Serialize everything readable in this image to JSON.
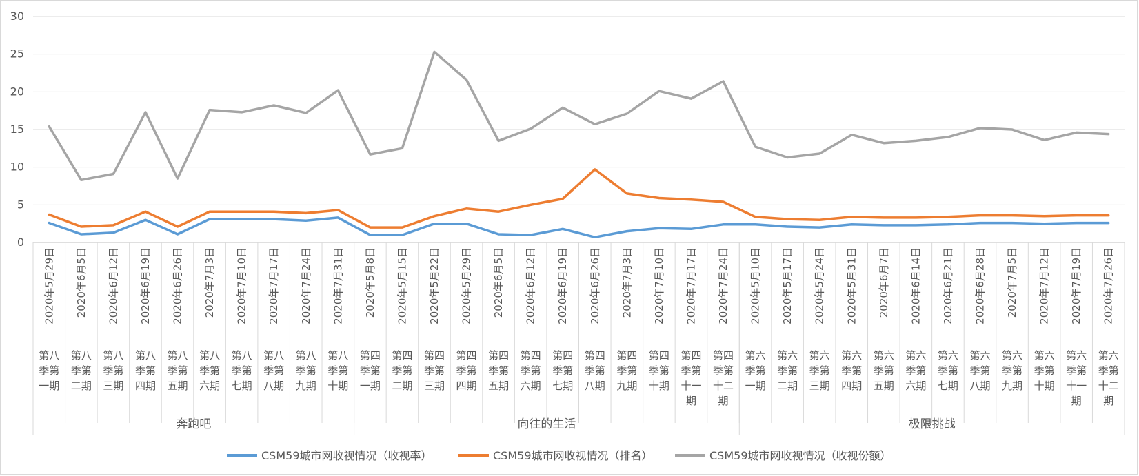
{
  "chart_data": {
    "type": "line",
    "ylim": [
      0,
      30
    ],
    "yticks": [
      0,
      5,
      10,
      15,
      20,
      25,
      30
    ],
    "grid": true,
    "legend_position": "bottom",
    "colors": [
      "#5b9bd5",
      "#ed7d31",
      "#a5a5a5"
    ],
    "groups": [
      {
        "name": "奔跑吧",
        "count": 10
      },
      {
        "name": "向往的生活",
        "count": 12
      },
      {
        "name": "极限挑战",
        "count": 12
      }
    ],
    "dates": [
      "2020年5月29日",
      "2020年6月5日",
      "2020年6月12日",
      "2020年6月19日",
      "2020年6月26日",
      "2020年7月3日",
      "2020年7月10日",
      "2020年7月17日",
      "2020年7月24日",
      "2020年7月31日",
      "2020年5月8日",
      "2020年5月15日",
      "2020年5月22日",
      "2020年5月29日",
      "2020年6月5日",
      "2020年6月12日",
      "2020年6月19日",
      "2020年6月26日",
      "2020年7月3日",
      "2020年7月10日",
      "2020年7月17日",
      "2020年7月24日",
      "2020年5月10日",
      "2020年5月17日",
      "2020年5月24日",
      "2020年5月31日",
      "2020年6月7日",
      "2020年6月14日",
      "2020年6月21日",
      "2020年6月28日",
      "2020年7月5日",
      "2020年7月12日",
      "2020年7月19日",
      "2020年7月26日"
    ],
    "episodes": [
      [
        "第八",
        "季第",
        "一期"
      ],
      [
        "第八",
        "季第",
        "二期"
      ],
      [
        "第八",
        "季第",
        "三期"
      ],
      [
        "第八",
        "季第",
        "四期"
      ],
      [
        "第八",
        "季第",
        "五期"
      ],
      [
        "第八",
        "季第",
        "六期"
      ],
      [
        "第八",
        "季第",
        "七期"
      ],
      [
        "第八",
        "季第",
        "八期"
      ],
      [
        "第八",
        "季第",
        "九期"
      ],
      [
        "第八",
        "季第",
        "十期"
      ],
      [
        "第四",
        "季第",
        "一期"
      ],
      [
        "第四",
        "季第",
        "二期"
      ],
      [
        "第四",
        "季第",
        "三期"
      ],
      [
        "第四",
        "季第",
        "四期"
      ],
      [
        "第四",
        "季第",
        "五期"
      ],
      [
        "第四",
        "季第",
        "六期"
      ],
      [
        "第四",
        "季第",
        "七期"
      ],
      [
        "第四",
        "季第",
        "八期"
      ],
      [
        "第四",
        "季第",
        "九期"
      ],
      [
        "第四",
        "季第",
        "十期"
      ],
      [
        "第四",
        "季第",
        "十一",
        "期"
      ],
      [
        "第四",
        "季第",
        "十二",
        "期"
      ],
      [
        "第六",
        "季第",
        "一期"
      ],
      [
        "第六",
        "季第",
        "二期"
      ],
      [
        "第六",
        "季第",
        "三期"
      ],
      [
        "第六",
        "季第",
        "四期"
      ],
      [
        "第六",
        "季第",
        "五期"
      ],
      [
        "第六",
        "季第",
        "六期"
      ],
      [
        "第六",
        "季第",
        "七期"
      ],
      [
        "第六",
        "季第",
        "八期"
      ],
      [
        "第六",
        "季第",
        "九期"
      ],
      [
        "第六",
        "季第",
        "十期"
      ],
      [
        "第六",
        "季第",
        "十一",
        "期"
      ],
      [
        "第六",
        "季第",
        "十二",
        "期"
      ]
    ],
    "series": [
      {
        "name": "CSM59城市网收视情况（收视率）",
        "values": [
          2.6,
          1.1,
          1.3,
          3.0,
          1.1,
          3.1,
          3.1,
          3.1,
          2.9,
          3.3,
          1.0,
          1.0,
          2.5,
          2.5,
          1.1,
          1.0,
          1.8,
          0.7,
          1.5,
          1.9,
          1.8,
          2.4,
          2.4,
          2.1,
          2.0,
          2.4,
          2.3,
          2.3,
          2.4,
          2.6,
          2.6,
          2.5,
          2.6,
          2.6
        ]
      },
      {
        "name": "CSM59城市网收视情况（排名）",
        "values": [
          3.7,
          2.1,
          2.3,
          4.1,
          2.1,
          4.1,
          4.1,
          4.1,
          3.9,
          4.3,
          2.0,
          2.0,
          3.5,
          4.5,
          4.1,
          5.0,
          5.8,
          9.7,
          6.5,
          5.9,
          5.7,
          5.4,
          3.4,
          3.1,
          3.0,
          3.4,
          3.3,
          3.3,
          3.4,
          3.6,
          3.6,
          3.5,
          3.6,
          3.6
        ]
      },
      {
        "name": "CSM59城市网收视情况（收视份额）",
        "values": [
          15.4,
          8.3,
          9.1,
          17.3,
          8.5,
          17.6,
          17.3,
          18.2,
          17.2,
          20.2,
          11.7,
          12.5,
          25.3,
          21.6,
          13.5,
          15.1,
          17.9,
          15.7,
          17.1,
          20.1,
          19.1,
          21.4,
          12.7,
          11.3,
          11.8,
          14.3,
          13.2,
          13.5,
          14.0,
          15.2,
          15.0,
          13.6,
          14.6,
          14.4
        ]
      }
    ]
  }
}
